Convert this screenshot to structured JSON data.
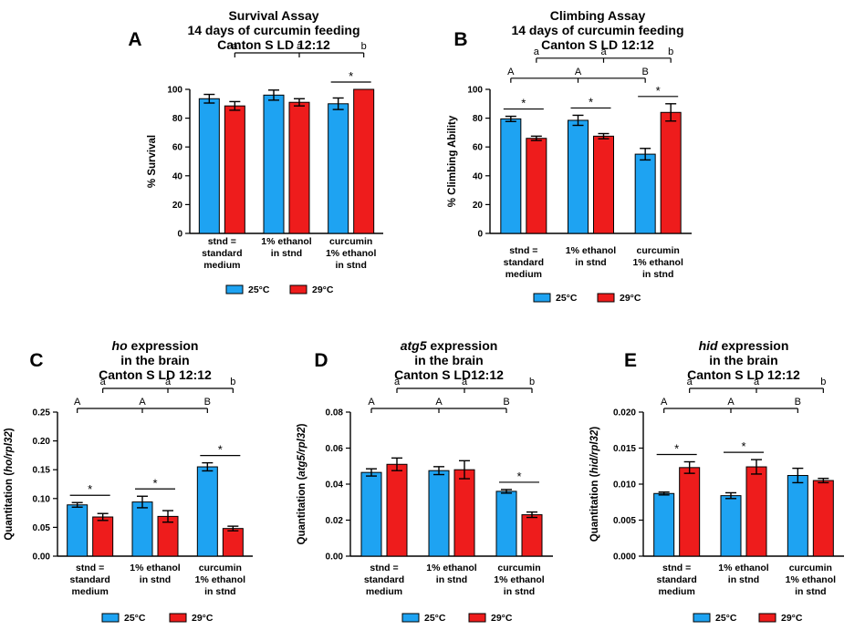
{
  "colors": {
    "c25": "#1ea3f2",
    "c29": "#ee1c1c"
  },
  "chart_data": [
    {
      "id": "A",
      "type": "bar",
      "label": "A",
      "title": [
        "Survival Assay",
        "14 days of curcumin feeding",
        "Canton S LD 12:12"
      ],
      "ylabel": "% Survival",
      "ylabel_italic": "",
      "ylim": [
        0,
        100
      ],
      "yticks": [
        "0",
        "20",
        "40",
        "60",
        "80",
        "100"
      ],
      "categories": [
        [
          "stnd =",
          "standard",
          "medium"
        ],
        [
          "1% ethanol",
          "in stnd"
        ],
        [
          "curcumin",
          "1% ethanol",
          "in stnd"
        ]
      ],
      "series": [
        {
          "name": "25°C",
          "values": [
            93.5,
            96,
            90
          ],
          "err": [
            3,
            3.5,
            4
          ]
        },
        {
          "name": "29°C",
          "values": [
            88.5,
            91,
            100
          ],
          "err": [
            3,
            2.5,
            0
          ]
        }
      ],
      "stars": [
        {
          "cat": 2,
          "text": "*"
        }
      ],
      "sig_lines": [
        {
          "cats": [
            0,
            2
          ],
          "labels": [
            "a",
            "a",
            "b"
          ],
          "series": 1
        }
      ]
    },
    {
      "id": "B",
      "type": "bar",
      "label": "B",
      "title": [
        "Climbing Assay",
        "14 days of curcumin feeding",
        "Canton S LD 12:12"
      ],
      "ylabel": "% Climbing Ability",
      "ylabel_italic": "",
      "ylim": [
        0,
        100
      ],
      "yticks": [
        "0",
        "20",
        "40",
        "60",
        "80",
        "100"
      ],
      "categories": [
        [
          "stnd =",
          "standard",
          "medium"
        ],
        [
          "1% ethanol",
          "in stnd"
        ],
        [
          "curcumin",
          "1% ethanol",
          "in stnd"
        ]
      ],
      "series": [
        {
          "name": "25°C",
          "values": [
            79.5,
            78.5,
            55
          ],
          "err": [
            1.8,
            3.5,
            4
          ]
        },
        {
          "name": "29°C",
          "values": [
            66,
            67.5,
            84
          ],
          "err": [
            1.5,
            1.8,
            6
          ]
        }
      ],
      "stars": [
        {
          "cat": 0,
          "text": "*"
        },
        {
          "cat": 1,
          "text": "*"
        },
        {
          "cat": 2,
          "text": "*"
        }
      ],
      "sig_lines": [
        {
          "cats": [
            0,
            2
          ],
          "labels": [
            "a",
            "a",
            "b"
          ],
          "series": 1
        },
        {
          "cats": [
            0,
            2
          ],
          "labels": [
            "A",
            "A",
            "B"
          ],
          "series": 0
        }
      ]
    },
    {
      "id": "C",
      "type": "bar",
      "label": "C",
      "title": [
        "ho expression",
        "in the brain",
        "Canton S LD 12:12"
      ],
      "title_italic": "ho",
      "ylabel": "Quantitation (",
      "ylabel_italic": "ho/rpl32",
      "ylabel_end": ")",
      "ylim": [
        0,
        0.25
      ],
      "yticks": [
        "0.00",
        "0.05",
        "0.10",
        "0.15",
        "0.20",
        "0.25"
      ],
      "categories": [
        [
          "stnd =",
          "standard",
          "medium"
        ],
        [
          "1% ethanol",
          "in stnd"
        ],
        [
          "curcumin",
          "1% ethanol",
          "in stnd"
        ]
      ],
      "series": [
        {
          "name": "25°C",
          "values": [
            0.089,
            0.094,
            0.155
          ],
          "err": [
            0.004,
            0.01,
            0.007
          ]
        },
        {
          "name": "29°C",
          "values": [
            0.068,
            0.069,
            0.048
          ],
          "err": [
            0.006,
            0.01,
            0.004
          ]
        }
      ],
      "stars": [
        {
          "cat": 0,
          "text": "*"
        },
        {
          "cat": 1,
          "text": "*"
        },
        {
          "cat": 2,
          "text": "*"
        }
      ],
      "sig_lines": [
        {
          "cats": [
            0,
            2
          ],
          "labels": [
            "a",
            "a",
            "b"
          ],
          "series": 1
        },
        {
          "cats": [
            0,
            2
          ],
          "labels": [
            "A",
            "A",
            "B"
          ],
          "series": 0
        }
      ]
    },
    {
      "id": "D",
      "type": "bar",
      "label": "D",
      "title": [
        "atg5 expression",
        "in the brain",
        "Canton S LD12:12"
      ],
      "title_italic": "atg5",
      "ylabel": "Quantitation (",
      "ylabel_italic": "atg5/rpl32",
      "ylabel_end": ")",
      "ylim": [
        0,
        0.08
      ],
      "yticks": [
        "0.00",
        "0.02",
        "0.04",
        "0.06",
        "0.08"
      ],
      "categories": [
        [
          "stnd =",
          "standard",
          "medium"
        ],
        [
          "1% ethanol",
          "in stnd"
        ],
        [
          "curcumin",
          "1% ethanol",
          "in stnd"
        ]
      ],
      "series": [
        {
          "name": "25°C",
          "values": [
            0.0465,
            0.0475,
            0.036
          ],
          "err": [
            0.002,
            0.0022,
            0.001
          ]
        },
        {
          "name": "29°C",
          "values": [
            0.051,
            0.048,
            0.023
          ],
          "err": [
            0.0035,
            0.005,
            0.0015
          ]
        }
      ],
      "stars": [
        {
          "cat": 2,
          "text": "*"
        }
      ],
      "sig_lines": [
        {
          "cats": [
            0,
            2
          ],
          "labels": [
            "a",
            "a",
            "b"
          ],
          "series": 1
        },
        {
          "cats": [
            0,
            2
          ],
          "labels": [
            "A",
            "A",
            "B"
          ],
          "series": 0
        }
      ]
    },
    {
      "id": "E",
      "type": "bar",
      "label": "E",
      "title": [
        "hid expression",
        "in the brain",
        "Canton S LD 12:12"
      ],
      "title_italic": "hid",
      "ylabel": "Quantitation (",
      "ylabel_italic": "hid/rpl32",
      "ylabel_end": ")",
      "ylim": [
        0,
        0.02
      ],
      "yticks": [
        "0.000",
        "0.005",
        "0.010",
        "0.015",
        "0.020"
      ],
      "categories": [
        [
          "stnd =",
          "standard",
          "medium"
        ],
        [
          "1% ethanol",
          "in stnd"
        ],
        [
          "curcumin",
          "1% ethanol",
          "in stnd"
        ]
      ],
      "series": [
        {
          "name": "25°C",
          "values": [
            0.0087,
            0.0084,
            0.0112
          ],
          "err": [
            0.0002,
            0.0004,
            0.001
          ]
        },
        {
          "name": "29°C",
          "values": [
            0.0123,
            0.0124,
            0.0105
          ],
          "err": [
            0.0008,
            0.001,
            0.0003
          ]
        }
      ],
      "stars": [
        {
          "cat": 0,
          "text": "*"
        },
        {
          "cat": 1,
          "text": "*"
        }
      ],
      "sig_lines": [
        {
          "cats": [
            0,
            2
          ],
          "labels": [
            "a",
            "a",
            "b"
          ],
          "series": 1
        },
        {
          "cats": [
            0,
            2
          ],
          "labels": [
            "A",
            "A",
            "B"
          ],
          "series": 0
        }
      ]
    }
  ]
}
